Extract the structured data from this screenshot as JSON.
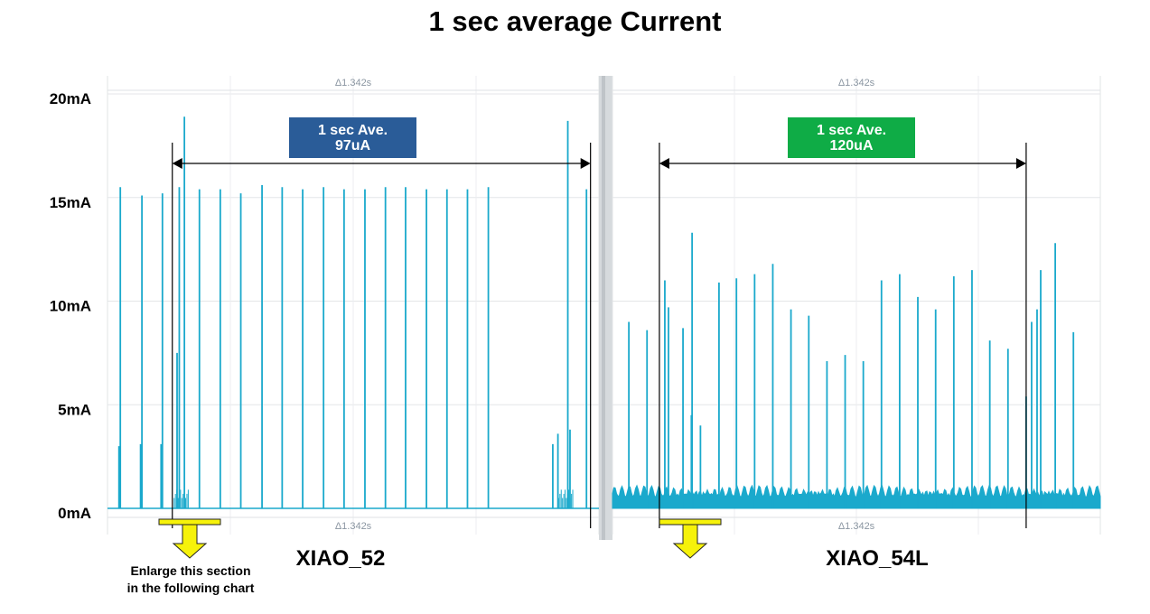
{
  "title": "1 sec average Current",
  "y_ticks": [
    "20mA",
    "15mA",
    "10mA",
    "5mA",
    "0mA"
  ],
  "delta_label": "Δ1.342s",
  "colors": {
    "trace": "#1aa9cc",
    "box_left": "#2a5c98",
    "box_right": "#0fac46",
    "arrow_yellow": "#f6f20a"
  },
  "note": [
    "Enlarge this section",
    " in the following chart"
  ],
  "chart_data": [
    {
      "type": "line",
      "name": "XIAO_52",
      "ylim": [
        0,
        20
      ],
      "x_span_s": 1.342,
      "peaks": [
        {
          "t": 0.035,
          "y": 15.5,
          "mid": 3.0
        },
        {
          "t": 0.094,
          "y": 15.1,
          "mid": 3.1
        },
        {
          "t": 0.15,
          "y": 15.2,
          "mid": 3.1
        },
        {
          "t": 0.196,
          "y": 15.5
        },
        {
          "t": 0.251,
          "y": 15.4
        },
        {
          "t": 0.308,
          "y": 15.4
        },
        {
          "t": 0.364,
          "y": 15.2
        },
        {
          "t": 0.422,
          "y": 15.6
        },
        {
          "t": 0.477,
          "y": 15.5
        },
        {
          "t": 0.533,
          "y": 15.4
        },
        {
          "t": 0.59,
          "y": 15.5
        },
        {
          "t": 0.646,
          "y": 15.4
        },
        {
          "t": 0.703,
          "y": 15.4
        },
        {
          "t": 0.759,
          "y": 15.5
        },
        {
          "t": 0.814,
          "y": 15.5
        },
        {
          "t": 0.871,
          "y": 15.4
        },
        {
          "t": 0.927,
          "y": 15.4
        },
        {
          "t": 0.983,
          "y": 15.4
        },
        {
          "t": 1.04,
          "y": 15.5
        }
      ],
      "extra_peaks": [
        {
          "t": 0.21,
          "y": 18.9
        },
        {
          "t": 0.19,
          "y": 7.5
        },
        {
          "t": 1.257,
          "y": 18.7
        },
        {
          "t": 1.308,
          "y": 15.4
        },
        {
          "t": 1.216,
          "y": 3.1
        },
        {
          "t": 1.23,
          "y": 3.6
        },
        {
          "t": 1.263,
          "y": 3.8
        }
      ],
      "annotation": {
        "label": [
          "1 sec Ave.",
          "97uA"
        ],
        "t_start": 0.177,
        "t_end": 1.319
      },
      "caption": "XIAO_52"
    },
    {
      "type": "line",
      "name": "XIAO_54L",
      "ylim": [
        0,
        20
      ],
      "x_span_s": 1.342,
      "baseline_noise": [
        0,
        1.2
      ],
      "peaks": [
        {
          "t": 0.045,
          "y": 9.0
        },
        {
          "t": 0.095,
          "y": 8.6
        },
        {
          "t": 0.144,
          "y": 11.0
        },
        {
          "t": 0.154,
          "y": 9.7
        },
        {
          "t": 0.194,
          "y": 8.7
        },
        {
          "t": 0.219,
          "y": 13.3
        },
        {
          "t": 0.217,
          "y": 4.5
        },
        {
          "t": 0.242,
          "y": 4.0
        },
        {
          "t": 0.293,
          "y": 10.9
        },
        {
          "t": 0.341,
          "y": 11.1
        },
        {
          "t": 0.391,
          "y": 11.3
        },
        {
          "t": 0.441,
          "y": 11.8
        },
        {
          "t": 0.491,
          "y": 9.6
        },
        {
          "t": 0.54,
          "y": 9.3
        },
        {
          "t": 0.59,
          "y": 7.1
        },
        {
          "t": 0.64,
          "y": 7.4
        },
        {
          "t": 0.69,
          "y": 7.1
        },
        {
          "t": 0.74,
          "y": 11.0
        },
        {
          "t": 0.79,
          "y": 11.3
        },
        {
          "t": 0.84,
          "y": 10.2
        },
        {
          "t": 0.889,
          "y": 9.6
        },
        {
          "t": 0.939,
          "y": 11.2
        },
        {
          "t": 0.989,
          "y": 11.5
        },
        {
          "t": 1.038,
          "y": 8.1
        },
        {
          "t": 1.088,
          "y": 7.7
        },
        {
          "t": 1.138,
          "y": 5.4
        },
        {
          "t": 1.153,
          "y": 9.0
        },
        {
          "t": 1.168,
          "y": 9.6
        },
        {
          "t": 1.178,
          "y": 11.5
        },
        {
          "t": 1.218,
          "y": 12.8
        },
        {
          "t": 1.268,
          "y": 8.5
        }
      ],
      "annotation": {
        "label": [
          "1 sec Ave.",
          "120uA"
        ],
        "t_start": 0.129,
        "t_end": 1.138
      },
      "caption": "XIAO_54L"
    }
  ]
}
